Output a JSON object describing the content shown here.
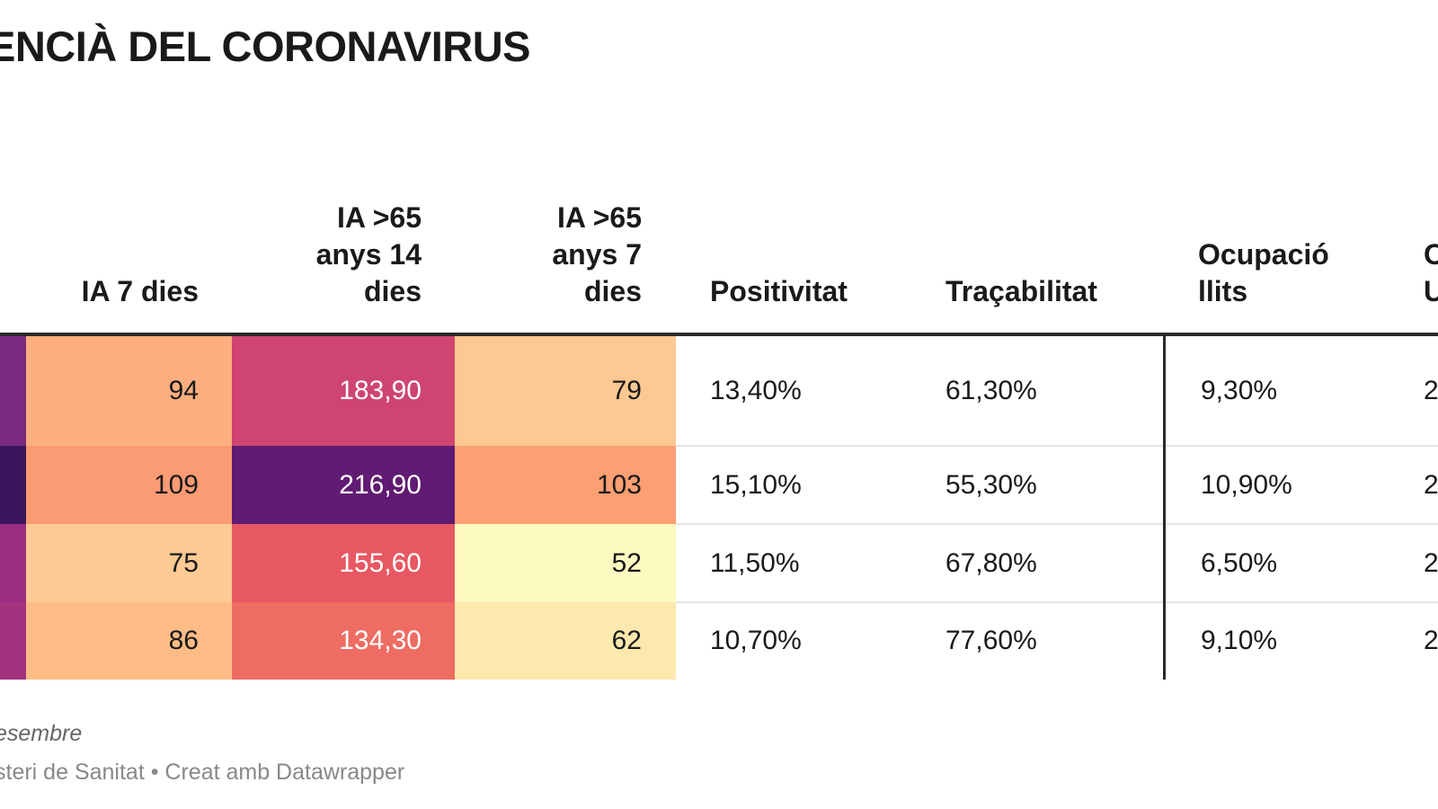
{
  "title": "ENCIÀ DEL CORONAVIRUS",
  "footer": {
    "note": "esembre",
    "source": "steri de Sanitat • Creat amb Datawrapper"
  },
  "chart_data": {
    "type": "table",
    "columns": [
      {
        "key": "edge",
        "label": ""
      },
      {
        "key": "ia7",
        "label": "IA 7 dies"
      },
      {
        "key": "ia65_14",
        "label": "IA >65\nanys 14\ndies"
      },
      {
        "key": "ia65_7",
        "label": "IA >65\nanys 7\ndies"
      },
      {
        "key": "positivitat",
        "label": "Positivitat"
      },
      {
        "key": "tracabilitat",
        "label": "Traçabilitat"
      },
      {
        "key": "llits",
        "label": "Ocupació\nllits"
      },
      {
        "key": "uci",
        "label": "O\nU"
      }
    ],
    "rows": [
      {
        "edge_color": "#7a2a82",
        "ia7": "94",
        "ia7_color": "#fcae7f",
        "ia65_14": "183,90",
        "ia65_14_color": "#cf4470",
        "ia65_7": "79",
        "ia65_7_color": "#fdc891",
        "positivitat": "13,40%",
        "tracabilitat": "61,30%",
        "llits": "9,30%",
        "uci": "2"
      },
      {
        "edge_color": "#3a1560",
        "ia7": "109",
        "ia7_color": "#fb9b73",
        "ia65_14": "216,90",
        "ia65_14_color": "#601b72",
        "ia65_7": "103",
        "ia65_7_color": "#fc9f73",
        "positivitat": "15,10%",
        "tracabilitat": "55,30%",
        "llits": "10,90%",
        "uci": "2"
      },
      {
        "edge_color": "#9b2e80",
        "ia7": "75",
        "ia7_color": "#fdca93",
        "ia65_14": "155,60",
        "ia65_14_color": "#e75863",
        "ia65_7": "52",
        "ia65_7_color": "#fcfac0",
        "positivitat": "11,50%",
        "tracabilitat": "67,80%",
        "llits": "6,50%",
        "uci": "2"
      },
      {
        "edge_color": "#a4337f",
        "ia7": "86",
        "ia7_color": "#fdbc86",
        "ia65_14": "134,30",
        "ia65_14_color": "#ee6c62",
        "ia65_7": "62",
        "ia65_7_color": "#fde8ad",
        "positivitat": "10,70%",
        "tracabilitat": "77,60%",
        "llits": "9,10%",
        "uci": "2"
      }
    ]
  }
}
